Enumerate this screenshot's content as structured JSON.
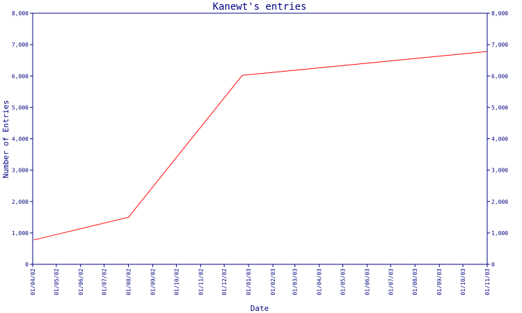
{
  "chart_data": {
    "type": "line",
    "title": "Kanewt's entries",
    "xlabel": "Date",
    "ylabel": "Number of Entries",
    "ylim": [
      0,
      8000
    ],
    "y_ticks": [
      0,
      1000,
      2000,
      3000,
      4000,
      5000,
      6000,
      7000,
      8000
    ],
    "y_tick_labels": [
      "0",
      "1,000",
      "2,000",
      "3,000",
      "4,000",
      "5,000",
      "6,000",
      "7,000",
      "8,000"
    ],
    "x_tick_labels": [
      "01/04/02",
      "01/05/02",
      "01/06/02",
      "01/07/02",
      "01/08/02",
      "01/09/02",
      "01/10/02",
      "01/11/02",
      "01/12/02",
      "01/01/03",
      "01/02/03",
      "01/03/03",
      "01/04/03",
      "01/05/03",
      "01/06/03",
      "01/07/03",
      "01/08/03",
      "01/09/03",
      "01/10/03",
      "01/11/03"
    ],
    "series": [
      {
        "color": "#ff0000",
        "points": [
          {
            "x": "2002-04-03",
            "y": 780
          },
          {
            "x": "2002-08-01",
            "y": 1500
          },
          {
            "x": "2002-12-24",
            "y": 6020
          },
          {
            "x": "2003-10-31",
            "y": 6780
          }
        ]
      }
    ],
    "secondary_y_axis": true,
    "grid": false,
    "colors": {
      "axis": "#000080",
      "text": "#000080",
      "line": "#ff0000"
    }
  }
}
